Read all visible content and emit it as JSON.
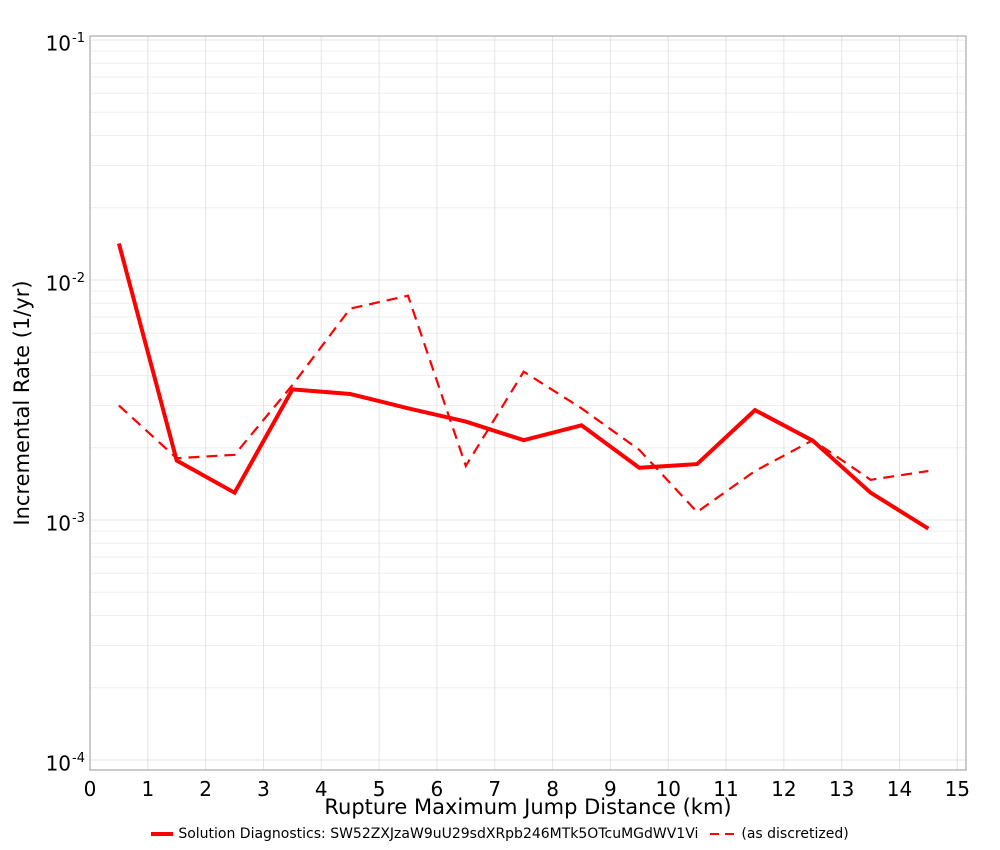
{
  "chart_data": {
    "type": "line",
    "title": "",
    "xlabel": "Rupture Maximum Jump Distance (km)",
    "ylabel": "Incremental Rate (1/yr)",
    "yscale": "log",
    "xlim": [
      0,
      15.15
    ],
    "ylim_log10": [
      -4.0417,
      -0.9833
    ],
    "x_ticks": [
      0,
      1,
      2,
      3,
      4,
      5,
      6,
      7,
      8,
      9,
      10,
      11,
      12,
      13,
      14,
      15
    ],
    "y_tick_exponents": [
      -1,
      -2,
      -3,
      -4
    ],
    "grid": {
      "major": true,
      "minor": true
    },
    "legend_position": "bottom-center",
    "x": [
      0.5,
      1.5,
      2.5,
      3.5,
      4.5,
      5.5,
      6.5,
      7.5,
      8.5,
      9.5,
      10.5,
      11.5,
      12.5,
      13.5,
      14.5
    ],
    "series": [
      {
        "name": "Solution Diagnostics: SW52ZXJzaW9uU29sdXRpb246MTk5OTcuMGdWV1Vi",
        "style": "solid",
        "color": "#ff0000",
        "linewidth": 4,
        "values": [
          0.0142,
          0.00177,
          0.0013,
          0.0035,
          0.00335,
          0.00292,
          0.00257,
          0.00215,
          0.00248,
          0.00165,
          0.00171,
          0.00287,
          0.00214,
          0.0013,
          0.00092
        ]
      },
      {
        "name": "(as discretized)",
        "style": "dashed",
        "color": "#ff0000",
        "linewidth": 2.2,
        "values": [
          0.003,
          0.00181,
          0.00187,
          0.00365,
          0.0076,
          0.0086,
          0.00168,
          0.00415,
          0.00292,
          0.00196,
          0.00108,
          0.0016,
          0.00215,
          0.00147,
          0.0016
        ]
      }
    ]
  },
  "colors": {
    "series_red": "#ff0000",
    "grid_major": "#e4e4e4",
    "grid_minor": "#efefef",
    "spine": "#b0b0b0",
    "text": "#000000",
    "background": "#ffffff"
  }
}
